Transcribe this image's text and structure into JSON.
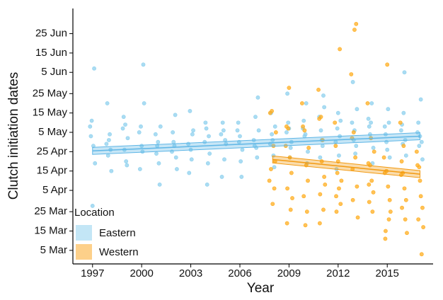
{
  "chart_data": {
    "type": "scatter",
    "x_label": "Year",
    "y_label": "Clutch initiation dates",
    "legend_title": "Location",
    "legend": "bottom-left",
    "xlim": [
      1995.8,
      2017.8
    ],
    "xticks": [
      1997,
      2000,
      2003,
      2006,
      2009,
      2012,
      2015
    ],
    "ylim": [
      57,
      189
    ],
    "yticks": [
      {
        "value": 64,
        "label": "5 Mar"
      },
      {
        "value": 74,
        "label": "15 Mar"
      },
      {
        "value": 84,
        "label": "25 Mar"
      },
      {
        "value": 95,
        "label": "5 Apr"
      },
      {
        "value": 105,
        "label": "15 Apr"
      },
      {
        "value": 115,
        "label": "25 Apr"
      },
      {
        "value": 125,
        "label": "5 May"
      },
      {
        "value": 135,
        "label": "15 May"
      },
      {
        "value": 145,
        "label": "25 May"
      },
      {
        "value": 156,
        "label": "5 Jun"
      },
      {
        "value": 166,
        "label": "15 Jun"
      },
      {
        "value": 176,
        "label": "25 Jun"
      }
    ],
    "series": [
      {
        "name": "Eastern",
        "color": "#8ed0ee",
        "legend_color": "#c3e6f6",
        "line_color": "#5fb6e6",
        "trend_x": [
          1997,
          2017
        ],
        "trend_values": [
          115.4,
          123
        ],
        "x": [
          1996.85,
          1996.95,
          1997.05,
          1997.15,
          1996.9,
          1997.1,
          1997,
          1997.85,
          1997.95,
          1998.05,
          1998.15,
          1997.9,
          1998.1,
          1998,
          1998.85,
          1998.95,
          1999.05,
          1999.15,
          1998.9,
          1999.1,
          1999,
          1999.85,
          1999.95,
          2000.05,
          2000.15,
          1999.9,
          2000.1,
          2000,
          2000.85,
          2000.95,
          2001.05,
          2001.15,
          2000.9,
          2001.1,
          2001,
          2001.85,
          2001.95,
          2002.05,
          2002.15,
          2001.9,
          2002.1,
          2002,
          2002.85,
          2002.95,
          2003.05,
          2003.15,
          2002.9,
          2003.1,
          2003,
          2003.85,
          2003.95,
          2004.05,
          2004.15,
          2003.9,
          2004.1,
          2004,
          2004.85,
          2004.95,
          2005.05,
          2005.15,
          2004.9,
          2005.1,
          2005,
          2005.85,
          2005.95,
          2006.05,
          2006.15,
          2005.9,
          2006.1,
          2006,
          2006.85,
          2006.95,
          2007.05,
          2007.15,
          2006.9,
          2007.1,
          2007,
          2007.85,
          2007.95,
          2008.05,
          2008.15,
          2007.9,
          2008.1,
          2008,
          2008.85,
          2008.95,
          2009.05,
          2009.15,
          2008.9,
          2009.1,
          2009,
          2009.85,
          2009.95,
          2010.05,
          2010.15,
          2009.9,
          2010.1,
          2010,
          2010.85,
          2010.95,
          2011.05,
          2011.15,
          2010.9,
          2011.1,
          2011,
          2011.85,
          2011.95,
          2012.05,
          2012.15,
          2011.9,
          2012.1,
          2012,
          2012.85,
          2012.95,
          2013.05,
          2013.15,
          2012.9,
          2013.1,
          2013,
          2013.85,
          2013.95,
          2014.05,
          2014.15,
          2013.9,
          2014.1,
          2014,
          2014.85,
          2014.95,
          2015.05,
          2015.15,
          2014.9,
          2015.1,
          2015,
          2015.85,
          2015.95,
          2016.05,
          2016.15,
          2015.9,
          2016.1,
          2016,
          2016.85,
          2016.95,
          2017.05,
          2017.15,
          2016.9,
          2017.1,
          2017
        ],
        "values": [
          128,
          131,
          118,
          109,
          123,
          158,
          87,
          119,
          113,
          124,
          105,
          140,
          116,
          121,
          127,
          116,
          110,
          122,
          133,
          108,
          129,
          125,
          128,
          115,
          140,
          106,
          160,
          118,
          124,
          118,
          109,
          128,
          114,
          98,
          120,
          115,
          120,
          134,
          106,
          125,
          112,
          118,
          119,
          136,
          111,
          126,
          104,
          124,
          116,
          120,
          127,
          109,
          114,
          130,
          123,
          98,
          124,
          130,
          111,
          119,
          102,
          121,
          126,
          126,
          120,
          110,
          116,
          130,
          102,
          123,
          121,
          133,
          112,
          126,
          118,
          143,
          117,
          119,
          124,
          113,
          128,
          135,
          107,
          121,
          125,
          130,
          112,
          120,
          145,
          117,
          127,
          127,
          123,
          140,
          115,
          131,
          109,
          124,
          133,
          126,
          118,
          138,
          112,
          144,
          121,
          120,
          127,
          113,
          131,
          106,
          123,
          135,
          130,
          121,
          114,
          137,
          151,
          118,
          126,
          132,
          124,
          140,
          117,
          128,
          109,
          130,
          128,
          120,
          137,
          112,
          124,
          130,
          116,
          126,
          119,
          156,
          113,
          129,
          121,
          135,
          125,
          118,
          142,
          111,
          130,
          120,
          123
        ]
      },
      {
        "name": "Western",
        "color": "#ffad1f",
        "legend_color": "#fdd08a",
        "line_color": "#f29a12",
        "trend_x": [
          2008,
          2017
        ],
        "trend_values": [
          111,
          103.4
        ],
        "x": [
          2007.85,
          2007.95,
          2008.05,
          2008.15,
          2007.9,
          2008.1,
          2008,
          2007.8,
          2008.2,
          2008.85,
          2008.95,
          2009.05,
          2009.15,
          2008.9,
          2009.1,
          2009,
          2008.8,
          2009.2,
          2008.88,
          2009.85,
          2009.95,
          2010.05,
          2010.15,
          2009.9,
          2010.1,
          2010,
          2009.8,
          2010.2,
          2010.85,
          2010.95,
          2011.05,
          2011.15,
          2010.9,
          2011.1,
          2011,
          2010.8,
          2011.2,
          2010.88,
          2011.85,
          2011.95,
          2012.05,
          2012.15,
          2011.9,
          2012.1,
          2012,
          2011.8,
          2012.2,
          2011.88,
          2012.85,
          2012.95,
          2013.05,
          2013.15,
          2012.9,
          2013.1,
          2013,
          2012.8,
          2013.2,
          2012.88,
          2013.85,
          2013.95,
          2014.05,
          2014.15,
          2013.9,
          2014.1,
          2014,
          2013.8,
          2014.2,
          2013.88,
          2014.85,
          2014.95,
          2015.05,
          2015.15,
          2014.9,
          2015.1,
          2015,
          2014.8,
          2015.2,
          2014.88,
          2015.85,
          2015.95,
          2016.05,
          2016.15,
          2015.9,
          2016.1,
          2016,
          2015.8,
          2016.2,
          2015.88,
          2016.85,
          2016.95,
          2017.05,
          2017.15,
          2016.9,
          2017.1,
          2017,
          2016.8,
          2017.2
        ],
        "values": [
          135,
          136,
          118,
          110,
          106,
          96,
          88,
          100,
          125,
          128,
          127,
          112,
          104,
          96,
          85,
          148,
          118,
          91,
          78,
          128,
          126,
          108,
          100,
          92,
          84,
          77,
          140,
          117,
          132,
          133,
          121,
          102,
          93,
          85,
          110,
          147,
          98,
          78,
          118,
          104,
          96,
          88,
          84,
          168,
          110,
          130,
          100,
          92,
          122,
          125,
          112,
          97,
          90,
          181,
          178,
          155,
          81,
          106,
          109,
          108,
          100,
          94,
          89,
          84,
          122,
          140,
          115,
          98,
          104,
          105,
          97,
          90,
          74,
          80,
          160,
          112,
          84,
          70,
          103,
          104,
          96,
          90,
          86,
          80,
          118,
          130,
          73,
          110,
          108,
          107,
          92,
          86,
          80,
          62,
          100,
          115,
          76
        ]
      }
    ]
  }
}
